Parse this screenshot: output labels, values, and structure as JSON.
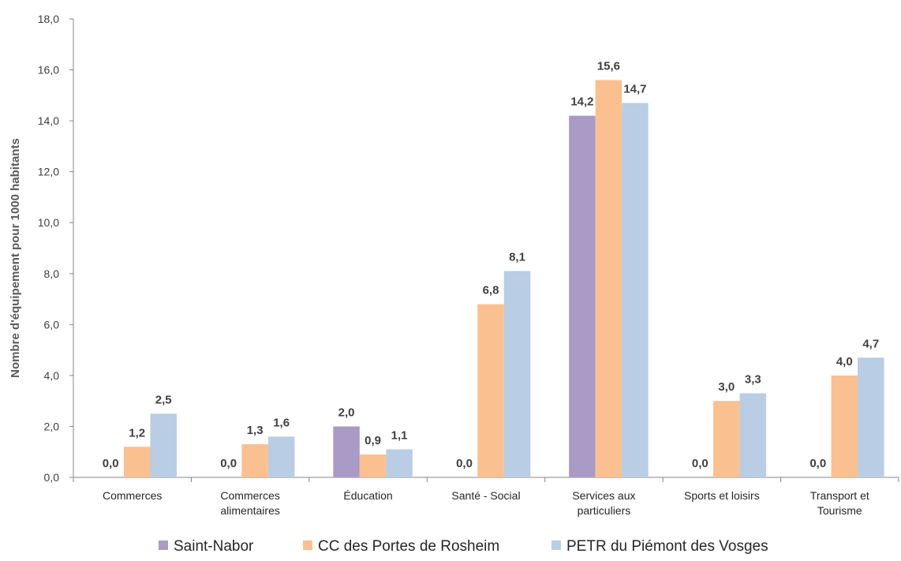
{
  "chart_data": {
    "type": "bar",
    "ylabel": "Nombre d'équipement pour 1000 habitants",
    "ylim": [
      0,
      18
    ],
    "yticks": [
      "0,0",
      "2,0",
      "4,0",
      "6,0",
      "8,0",
      "10,0",
      "12,0",
      "14,0",
      "16,0",
      "18,0"
    ],
    "grid": false,
    "legend_position": "bottom",
    "categories": [
      [
        "Commerces"
      ],
      [
        "Commerces",
        "alimentaires"
      ],
      [
        "Éducation"
      ],
      [
        "Santé - Social"
      ],
      [
        "Services aux",
        "particuliers"
      ],
      [
        "Sports et loisirs"
      ],
      [
        "Transport et",
        "Tourisme"
      ]
    ],
    "series": [
      {
        "name": "Saint-Nabor",
        "color": "#a99bc6",
        "values": [
          0.0,
          0.0,
          2.0,
          0.0,
          14.2,
          0.0,
          0.0
        ],
        "labels": [
          "0,0",
          "0,0",
          "2,0",
          "0,0",
          "14,2",
          "0,0",
          "0,0"
        ]
      },
      {
        "name": "CC des Portes de Rosheim",
        "color": "#fac090",
        "values": [
          1.2,
          1.3,
          0.9,
          6.8,
          15.6,
          3.0,
          4.0
        ],
        "labels": [
          "1,2",
          "1,3",
          "0,9",
          "6,8",
          "15,6",
          "3,0",
          "4,0"
        ]
      },
      {
        "name": "PETR du Piémont des Vosges",
        "color": "#b9cde5",
        "values": [
          2.5,
          1.6,
          1.1,
          8.1,
          14.7,
          3.3,
          4.7
        ],
        "labels": [
          "2,5",
          "1,6",
          "1,1",
          "8,1",
          "14,7",
          "3,3",
          "4,7"
        ]
      }
    ]
  }
}
